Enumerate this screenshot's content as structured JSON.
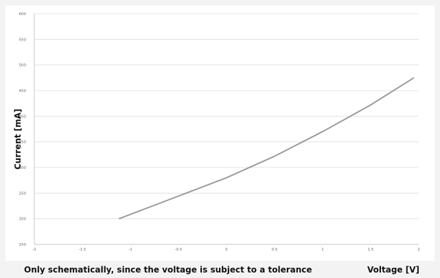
{
  "chart_data": {
    "type": "line",
    "title": "",
    "xlabel": "Voltage [V]",
    "ylabel": "Current  [mA]",
    "note": "Only schematically, since the voltage is subject to a tolerance",
    "xlim": [
      -2,
      2
    ],
    "ylim": [
      150,
      600
    ],
    "x_ticks": [
      "-2",
      "-1.5",
      "-1",
      "-0.5",
      "0",
      "0.5",
      "1",
      "1.5",
      "2"
    ],
    "y_ticks": [
      "150",
      "200",
      "250",
      "300",
      "350",
      "400",
      "450",
      "500",
      "550",
      "600"
    ],
    "grid": true,
    "series": [
      {
        "x": [
          -1.12,
          -0.6,
          0,
          0.5,
          1,
          1.5,
          1.95
        ],
        "y": [
          200,
          237,
          280,
          322,
          370,
          422,
          475
        ],
        "color": "#9a9a9a"
      }
    ]
  }
}
